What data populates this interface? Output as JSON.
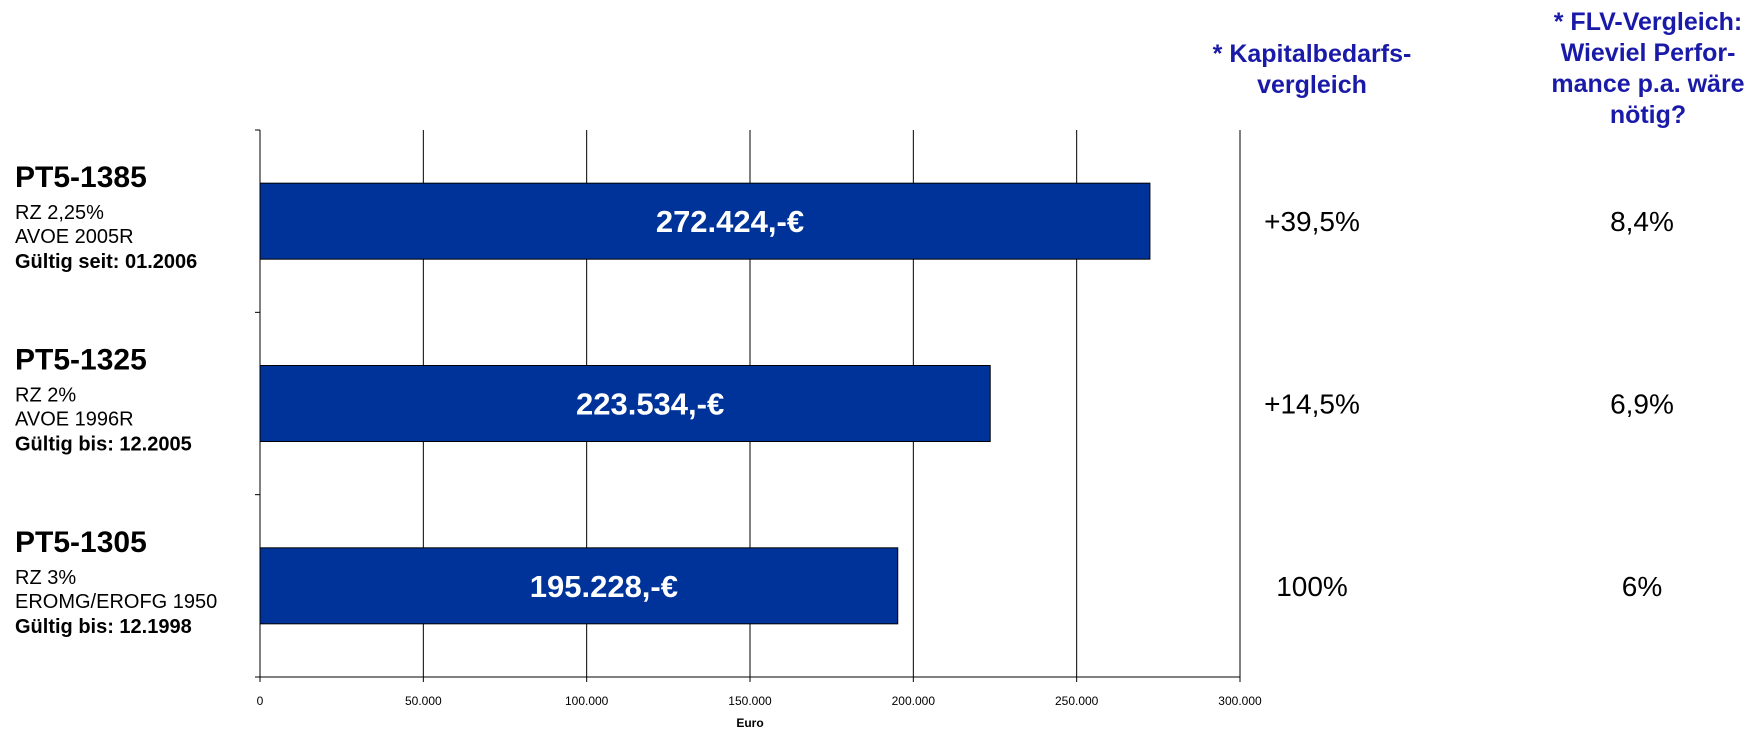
{
  "chart_data": {
    "type": "bar",
    "orientation": "horizontal",
    "title": "",
    "xlabel": "Euro",
    "ylabel": "",
    "xlim": [
      0,
      300000
    ],
    "x_ticks": [
      {
        "value": 0,
        "label": "0"
      },
      {
        "value": 50000,
        "label": "50.000"
      },
      {
        "value": 100000,
        "label": "100.000"
      },
      {
        "value": 150000,
        "label": "150.000"
      },
      {
        "value": 200000,
        "label": "200.000"
      },
      {
        "value": 250000,
        "label": "250.000"
      },
      {
        "value": 300000,
        "label": "300.000"
      }
    ],
    "grid": true,
    "legend": "none",
    "categories": [
      {
        "name": "PT5-1385",
        "lines": [
          "RZ 2,25%",
          "AVOE 2005R"
        ],
        "validity": "Gültig seit: 01.2006"
      },
      {
        "name": "PT5-1325",
        "lines": [
          "RZ 2%",
          "AVOE 1996R"
        ],
        "validity": "Gültig bis: 12.2005"
      },
      {
        "name": "PT5-1305",
        "lines": [
          "RZ 3%",
          "EROMG/EROFG 1950"
        ],
        "validity": "Gültig bis: 12.1998"
      }
    ],
    "values": [
      272424,
      223534,
      195228
    ],
    "data_labels": [
      "272.424,-€",
      "223.534,-€",
      "195.228,-€"
    ],
    "bar_color": "#003399"
  },
  "side_columns": [
    {
      "header_lines": [
        "* Kapitalbedarfs-",
        "vergleich"
      ],
      "values": [
        "+39,5%",
        "+14,5%",
        "100%"
      ]
    },
    {
      "header_lines": [
        "* FLV-Vergleich:",
        "Wieviel Perfor-",
        "mance p.a. wäre",
        "nötig?"
      ],
      "values": [
        "8,4%",
        "6,9%",
        "6%"
      ]
    }
  ],
  "colors": {
    "header_text": "#1a1aa8",
    "bar": "#003399",
    "grid": "#000000"
  }
}
